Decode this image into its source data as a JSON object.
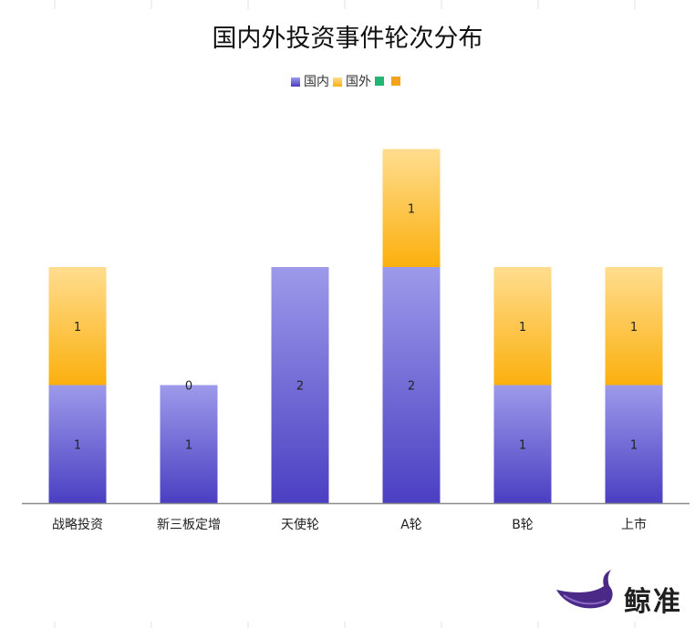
{
  "chart_data": {
    "type": "bar",
    "stacked": true,
    "title": "国内外投资事件轮次分布",
    "categories": [
      "战略投资",
      "新三板定增",
      "天使轮",
      "A轮",
      "B轮",
      "上市"
    ],
    "series": [
      {
        "name": "国内",
        "values": [
          1,
          1,
          2,
          2,
          1,
          1
        ],
        "labels": [
          "1",
          "1",
          "2",
          "2",
          "1",
          "1"
        ],
        "color_top": "#9d9aea",
        "color_bottom": "#4b3fc2"
      },
      {
        "name": "国外",
        "values": [
          1,
          0,
          0,
          1,
          1,
          1
        ],
        "labels": [
          "1",
          "0",
          "",
          "1",
          "1",
          "1"
        ],
        "color_top": "#ffdd8f",
        "color_bottom": "#fbb00e"
      },
      {
        "name": "",
        "values": [
          0,
          0,
          0,
          0,
          0,
          0
        ],
        "labels": [
          "",
          "",
          "",
          "",
          "",
          ""
        ],
        "color_top": "#22b573",
        "color_bottom": "#22b573"
      },
      {
        "name": "",
        "values": [
          0,
          0,
          0,
          0,
          0,
          0
        ],
        "labels": [
          "",
          "",
          "",
          "",
          "",
          ""
        ],
        "color_top": "#f4a21a",
        "color_bottom": "#f4a21a"
      }
    ],
    "ylim": [
      0,
      3
    ],
    "grid": false,
    "legend_position": "top"
  },
  "logo": {
    "text": "鲸准"
  }
}
